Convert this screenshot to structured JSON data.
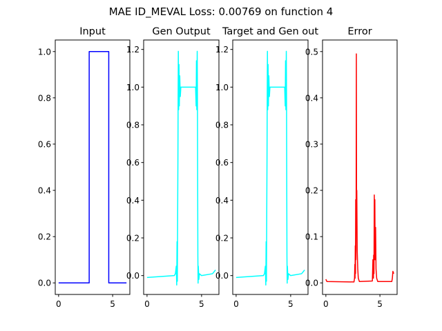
{
  "suptitle": "MAE ID_MEVAL Loss: 0.00769 on function 4",
  "chart_data": [
    {
      "type": "line",
      "title": "Input",
      "color": "#0000ff",
      "xlim": [
        -0.31,
        6.59
      ],
      "ylim": [
        -0.05,
        1.05
      ],
      "xticks": [
        0,
        5
      ],
      "yticks": [
        0.0,
        0.2,
        0.4,
        0.6,
        0.8,
        1.0
      ],
      "ytick_labels": [
        "0.0",
        "0.2",
        "0.4",
        "0.6",
        "0.8",
        "1.0"
      ],
      "x": [
        0,
        2.83,
        2.83,
        4.64,
        4.64,
        6.28
      ],
      "y": [
        0,
        0,
        1,
        1,
        0,
        0
      ]
    },
    {
      "type": "line",
      "title": "Gen Output",
      "color": "#00ffff",
      "xlim": [
        -0.31,
        6.59
      ],
      "ylim": [
        -0.1,
        1.25
      ],
      "xticks": [
        0,
        5
      ],
      "yticks": [
        0.0,
        0.2,
        0.4,
        0.6,
        0.8,
        1.0,
        1.2
      ],
      "ytick_labels": [
        "0.0",
        "0.2",
        "0.4",
        "0.6",
        "0.8",
        "1.0",
        "1.2"
      ],
      "x": [
        0,
        2.5,
        2.6,
        2.68,
        2.72,
        2.75,
        2.78,
        2.8,
        2.83,
        2.85,
        2.87,
        2.9,
        2.93,
        2.96,
        3.0,
        3.05,
        3.1,
        3.3,
        4.2,
        4.45,
        4.5,
        4.53,
        4.56,
        4.6,
        4.62,
        4.64,
        4.66,
        4.68,
        4.7,
        4.75,
        4.8,
        5.0,
        6.0,
        6.28
      ],
      "y": [
        -0.01,
        0,
        0.01,
        0.05,
        -0.05,
        0.18,
        -0.03,
        0.25,
        0.6,
        0.95,
        1.19,
        0.88,
        1.12,
        0.9,
        1.06,
        0.95,
        1.0,
        1.0,
        1.0,
        1.0,
        0.9,
        1.14,
        0.88,
        1.19,
        0.96,
        0.5,
        0.1,
        -0.04,
        0.05,
        -0.02,
        0.01,
        0,
        0.01,
        0.03
      ]
    },
    {
      "type": "line",
      "title": "Target and Gen out",
      "color": "#00ffff",
      "xlim": [
        -0.31,
        6.59
      ],
      "ylim": [
        -0.1,
        1.25
      ],
      "xticks": [
        0,
        5
      ],
      "yticks": [
        0.0,
        0.2,
        0.4,
        0.6,
        0.8,
        1.0,
        1.2
      ],
      "ytick_labels": [
        "0.0",
        "0.2",
        "0.4",
        "0.6",
        "0.8",
        "1.0",
        "1.2"
      ],
      "x": [
        0,
        2.5,
        2.6,
        2.68,
        2.72,
        2.75,
        2.78,
        2.8,
        2.83,
        2.85,
        2.87,
        2.9,
        2.93,
        2.96,
        3.0,
        3.05,
        3.1,
        3.3,
        4.2,
        4.45,
        4.5,
        4.53,
        4.56,
        4.6,
        4.62,
        4.64,
        4.66,
        4.68,
        4.7,
        4.75,
        4.8,
        5.0,
        6.0,
        6.28
      ],
      "y": [
        -0.01,
        0,
        0.01,
        0.05,
        -0.05,
        0.18,
        -0.03,
        0.25,
        0.6,
        0.95,
        1.19,
        0.88,
        1.12,
        0.9,
        1.06,
        0.95,
        1.0,
        1.0,
        1.0,
        1.0,
        0.9,
        1.14,
        0.88,
        1.19,
        0.96,
        0.5,
        0.1,
        -0.04,
        0.05,
        -0.02,
        0.01,
        0,
        0.01,
        0.03
      ]
    },
    {
      "type": "line",
      "title": "Error",
      "color": "#ff0000",
      "xlim": [
        -0.31,
        6.59
      ],
      "ylim": [
        -0.025,
        0.525
      ],
      "xticks": [
        0,
        5
      ],
      "yticks": [
        0.0,
        0.1,
        0.2,
        0.3,
        0.4,
        0.5
      ],
      "ytick_labels": [
        "0.0",
        "0.1",
        "0.2",
        "0.3",
        "0.4",
        "0.5"
      ],
      "x": [
        0,
        0.05,
        0.1,
        2.6,
        2.65,
        2.68,
        2.7,
        2.72,
        2.74,
        2.76,
        2.78,
        2.8,
        2.82,
        2.84,
        2.86,
        2.9,
        2.95,
        3.0,
        3.1,
        4.3,
        4.35,
        4.4,
        4.42,
        4.45,
        4.48,
        4.5,
        4.53,
        4.56,
        4.6,
        4.64,
        4.7,
        4.8,
        6.1,
        6.15,
        6.2,
        6.28
      ],
      "y": [
        0.008,
        0.005,
        0.003,
        0.002,
        0.01,
        0.04,
        0.01,
        0.08,
        0.02,
        0.18,
        0.05,
        0.18,
        0.495,
        0.12,
        0.2,
        0.07,
        0.03,
        0.01,
        0.003,
        0.004,
        0.05,
        0.01,
        0.06,
        0.02,
        0.19,
        0.05,
        0.18,
        0.05,
        0.12,
        0.03,
        0.01,
        0.003,
        0.003,
        0.01,
        0.025,
        0.02
      ]
    }
  ]
}
